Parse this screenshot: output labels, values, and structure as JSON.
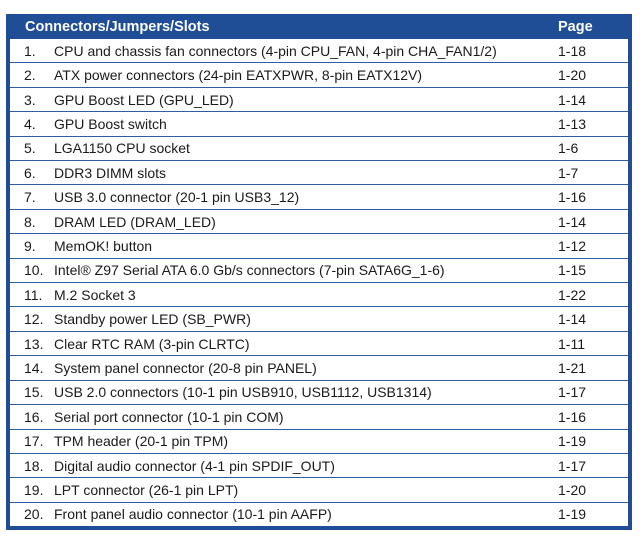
{
  "table": {
    "header_title": "Connectors/Jumpers/Slots",
    "header_page": "Page",
    "rows": [
      {
        "num": "1.",
        "desc": "CPU and chassis fan connectors (4-pin CPU_FAN, 4-pin CHA_FAN1/2)",
        "page": "1-18"
      },
      {
        "num": "2.",
        "desc": "ATX power connectors (24-pin EATXPWR, 8-pin EATX12V)",
        "page": "1-20"
      },
      {
        "num": "3.",
        "desc": "GPU Boost LED (GPU_LED)",
        "page": "1-14"
      },
      {
        "num": "4.",
        "desc": "GPU Boost switch",
        "page": "1-13"
      },
      {
        "num": "5.",
        "desc": "LGA1150 CPU socket",
        "page": "1-6"
      },
      {
        "num": "6.",
        "desc": "DDR3 DIMM slots",
        "page": "1-7"
      },
      {
        "num": "7.",
        "desc": "USB 3.0 connector (20-1 pin USB3_12)",
        "page": "1-16"
      },
      {
        "num": "8.",
        "desc": "DRAM LED (DRAM_LED)",
        "page": "1-14"
      },
      {
        "num": "9.",
        "desc": "MemOK! button",
        "page": "1-12"
      },
      {
        "num": "10.",
        "desc": "Intel® Z97 Serial ATA 6.0 Gb/s connectors (7-pin SATA6G_1-6)",
        "page": "1-15"
      },
      {
        "num": "11.",
        "desc": "M.2 Socket 3",
        "page": "1-22"
      },
      {
        "num": "12.",
        "desc": "Standby power LED (SB_PWR)",
        "page": "1-14"
      },
      {
        "num": "13.",
        "desc": "Clear RTC RAM (3-pin CLRTC)",
        "page": "1-11"
      },
      {
        "num": "14.",
        "desc": "System panel connector (20-8 pin PANEL)",
        "page": "1-21"
      },
      {
        "num": "15.",
        "desc": "USB 2.0 connectors (10-1 pin USB910, USB1112, USB1314)",
        "page": "1-17"
      },
      {
        "num": "16.",
        "desc": "Serial port connector (10-1 pin COM)",
        "page": "1-16"
      },
      {
        "num": "17.",
        "desc": "TPM header (20-1 pin TPM)",
        "page": "1-19"
      },
      {
        "num": "18.",
        "desc": "Digital audio connector (4-1 pin SPDIF_OUT)",
        "page": "1-17"
      },
      {
        "num": "19.",
        "desc": "LPT connector (26-1 pin LPT)",
        "page": "1-20"
      },
      {
        "num": "20.",
        "desc": "Front panel audio connector (10-1 pin AAFP)",
        "page": "1-19"
      }
    ]
  },
  "colors": {
    "header_bg": "#1f4e97",
    "row_border": "#2e5da8",
    "text": "#1a1a1a"
  }
}
